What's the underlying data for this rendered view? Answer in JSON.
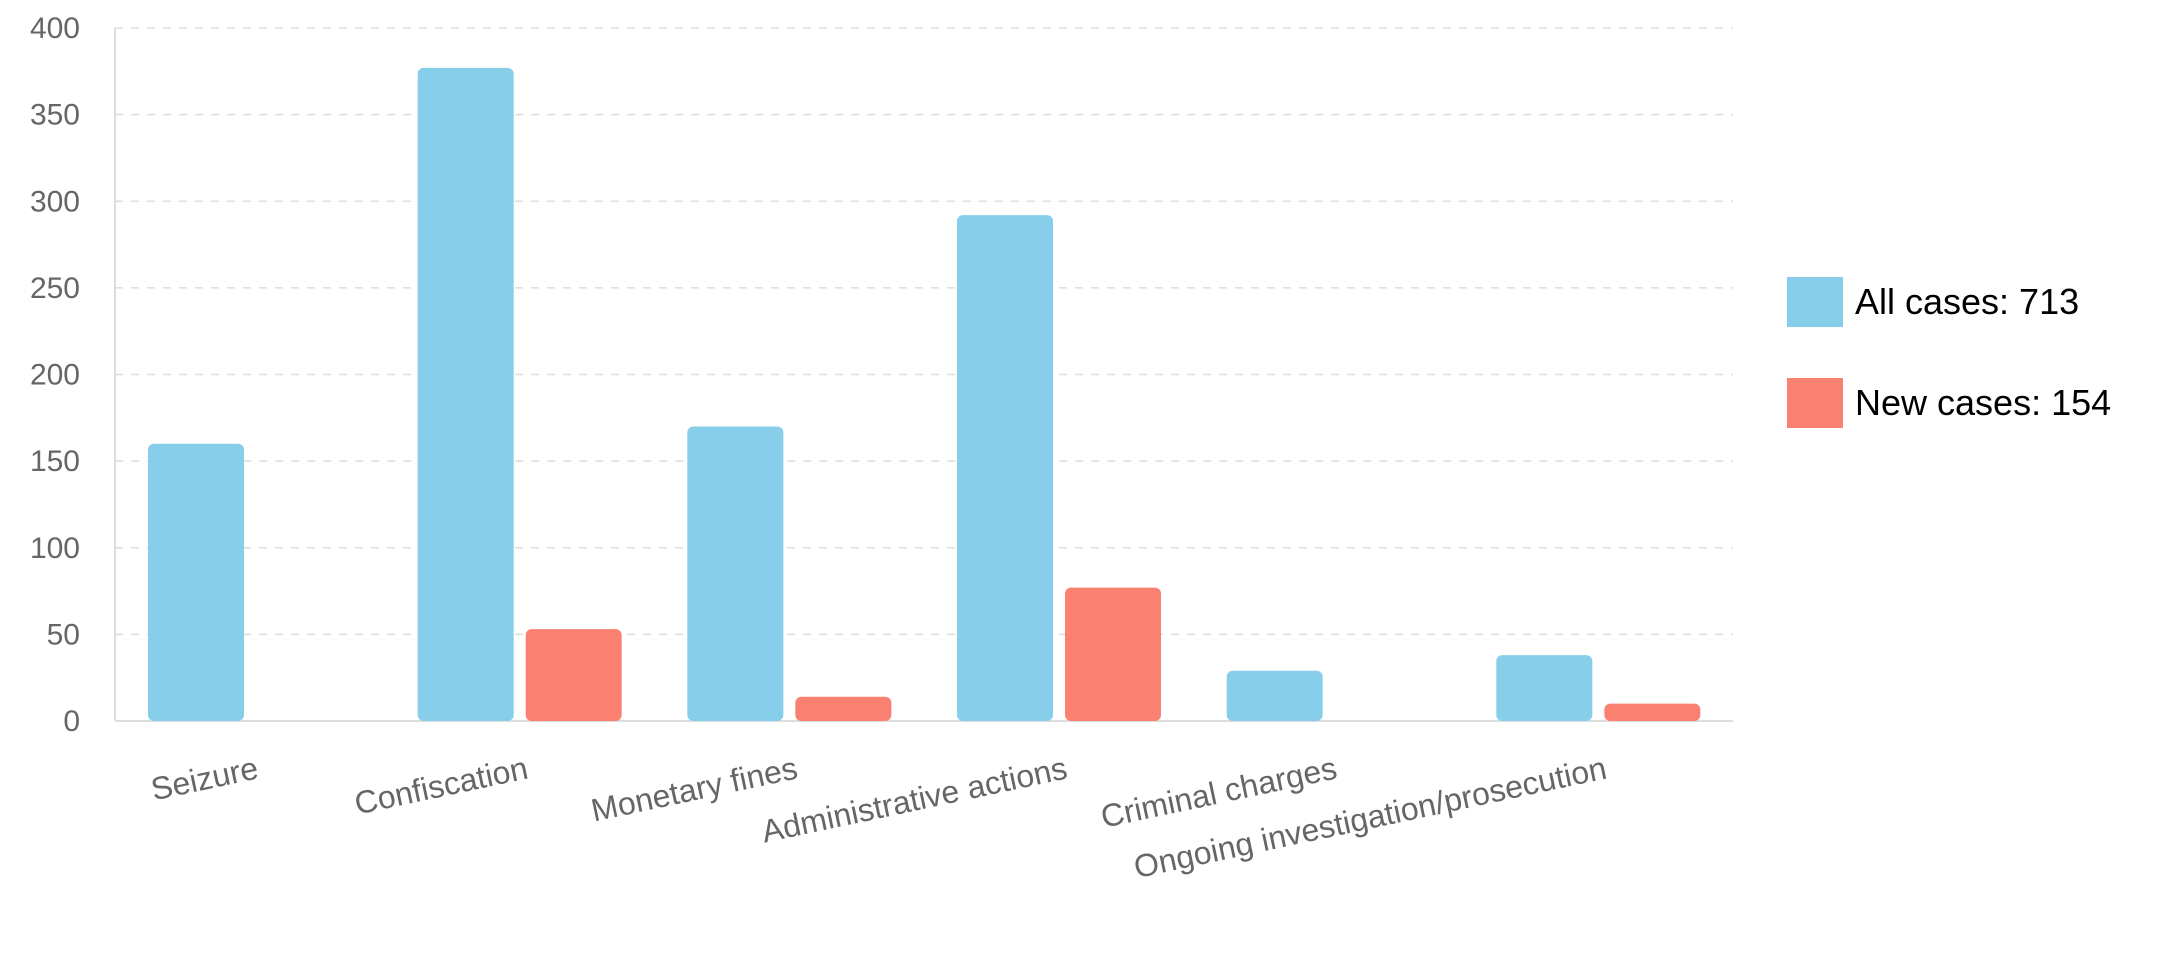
{
  "chart_data": {
    "type": "bar",
    "categories": [
      "Seizure",
      "Confiscation",
      "Monetary fines",
      "Administrative actions",
      "Criminal charges",
      "Ongoing investigation/prosecution"
    ],
    "series": [
      {
        "name": "All cases: 713",
        "color": "#87ceeb",
        "values": [
          160,
          377,
          170,
          292,
          29,
          38
        ]
      },
      {
        "name": "New cases: 154",
        "color": "#fa8072",
        "values": [
          0,
          53,
          14,
          77,
          0,
          10
        ]
      }
    ],
    "y_ticks": [
      "0",
      "50",
      "100",
      "150",
      "200",
      "250",
      "300",
      "350",
      "400"
    ],
    "ylim": [
      0,
      400
    ],
    "grid": true,
    "legend_position": "right"
  }
}
